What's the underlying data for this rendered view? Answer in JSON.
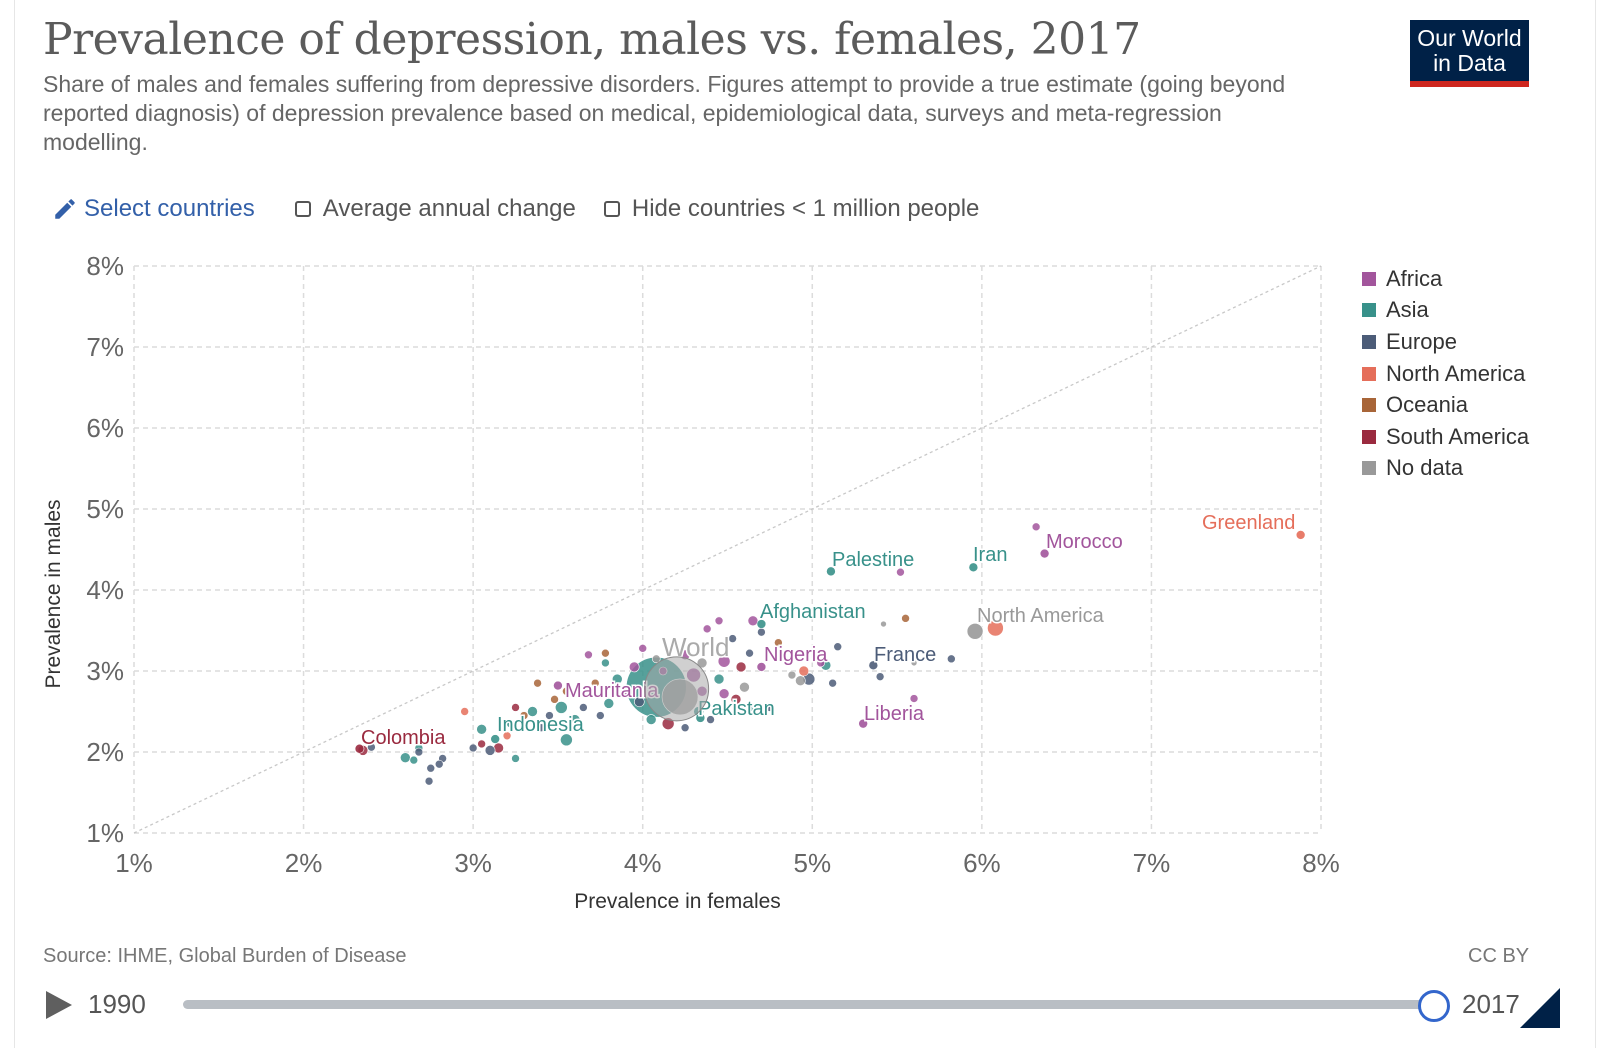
{
  "title": "Prevalence of depression, males vs. females, 2017",
  "subtitle": "Share of males and females suffering from depressive disorders. Figures attempt to provide a true estimate (going beyond reported diagnosis) of depression prevalence based on medical, epidemiological data, surveys and meta-regression modelling.",
  "logo": {
    "line1": "Our World",
    "line2": "in Data"
  },
  "controls": {
    "select_countries": "Select countries",
    "average_annual_change": "Average annual change",
    "hide_small": "Hide countries < 1 million people"
  },
  "source": "Source: IHME, Global Burden of Disease",
  "license": "CC BY",
  "timeline": {
    "start_year": "1990",
    "end_year": "2017",
    "position": 1.0
  },
  "colors": {
    "Africa": "#a2559c",
    "Asia": "#38918a",
    "Europe": "#4c5c78",
    "North America": "#e56e5a",
    "Oceania": "#a86538",
    "South America": "#9a2a3f",
    "No data": "#999999",
    "accent": "#3360a9"
  },
  "legend": [
    "Africa",
    "Asia",
    "Europe",
    "North America",
    "Oceania",
    "South America",
    "No data"
  ],
  "chart_data": {
    "type": "scatter",
    "title": "Prevalence of depression, males vs. females, 2017",
    "xlabel": "Prevalence in females",
    "ylabel": "Prevalence in males",
    "xlim": [
      1,
      8
    ],
    "ylim": [
      1,
      8
    ],
    "x_ticks": [
      "1%",
      "2%",
      "3%",
      "4%",
      "5%",
      "6%",
      "7%",
      "8%"
    ],
    "y_ticks": [
      "1%",
      "2%",
      "3%",
      "4%",
      "5%",
      "6%",
      "7%",
      "8%"
    ],
    "reference_line": "y = x",
    "labeled_points": [
      {
        "name": "Greenland",
        "x": 7.88,
        "y": 4.68,
        "region": "North America"
      },
      {
        "name": "Morocco",
        "x": 6.37,
        "y": 4.45,
        "region": "Africa"
      },
      {
        "name": "Iran",
        "x": 5.95,
        "y": 4.28,
        "region": "Asia"
      },
      {
        "name": "Palestine",
        "x": 5.11,
        "y": 4.23,
        "region": "Asia"
      },
      {
        "name": "North America",
        "x": 5.96,
        "y": 3.49,
        "region": "No data"
      },
      {
        "name": "Afghanistan",
        "x": 4.7,
        "y": 3.58,
        "region": "Asia"
      },
      {
        "name": "France",
        "x": 5.36,
        "y": 3.07,
        "region": "Europe"
      },
      {
        "name": "Nigeria",
        "x": 4.7,
        "y": 3.05,
        "region": "Africa"
      },
      {
        "name": "World",
        "x": 4.2,
        "y": 2.78,
        "region": "No data"
      },
      {
        "name": "Mauritania",
        "x": 3.5,
        "y": 2.82,
        "region": "Africa"
      },
      {
        "name": "Pakistan",
        "x": 4.34,
        "y": 2.42,
        "region": "Asia"
      },
      {
        "name": "Liberia",
        "x": 5.3,
        "y": 2.35,
        "region": "Africa"
      },
      {
        "name": "Indonesia",
        "x": 3.13,
        "y": 2.16,
        "region": "Asia"
      },
      {
        "name": "Colombia",
        "x": 2.33,
        "y": 2.04,
        "region": "South America"
      }
    ],
    "points": [
      {
        "x": 6.08,
        "y": 3.53,
        "region": "North America",
        "size": 8
      },
      {
        "x": 4.08,
        "y": 2.8,
        "region": "Asia",
        "size": 30
      },
      {
        "x": 4.22,
        "y": 2.68,
        "region": "No data",
        "size": 18
      },
      {
        "x": 6.32,
        "y": 4.78,
        "region": "Africa",
        "size": 4
      },
      {
        "x": 5.52,
        "y": 4.22,
        "region": "Africa",
        "size": 4
      },
      {
        "x": 5.55,
        "y": 3.65,
        "region": "Oceania",
        "size": 4
      },
      {
        "x": 5.42,
        "y": 3.58,
        "region": "No data",
        "size": 3
      },
      {
        "x": 5.82,
        "y": 3.15,
        "region": "Europe",
        "size": 4
      },
      {
        "x": 5.6,
        "y": 3.1,
        "region": "No data",
        "size": 3
      },
      {
        "x": 5.4,
        "y": 2.93,
        "region": "Europe",
        "size": 4
      },
      {
        "x": 5.6,
        "y": 2.66,
        "region": "Africa",
        "size": 4
      },
      {
        "x": 5.15,
        "y": 3.3,
        "region": "Europe",
        "size": 4
      },
      {
        "x": 5.08,
        "y": 3.07,
        "region": "Asia",
        "size": 5
      },
      {
        "x": 4.98,
        "y": 2.9,
        "region": "Europe",
        "size": 6
      },
      {
        "x": 4.93,
        "y": 2.88,
        "region": "No data",
        "size": 5
      },
      {
        "x": 5.12,
        "y": 2.85,
        "region": "Europe",
        "size": 4
      },
      {
        "x": 4.88,
        "y": 2.95,
        "region": "No data",
        "size": 4
      },
      {
        "x": 4.95,
        "y": 3.0,
        "region": "North America",
        "size": 5
      },
      {
        "x": 5.05,
        "y": 3.1,
        "region": "Africa",
        "size": 4
      },
      {
        "x": 4.8,
        "y": 3.35,
        "region": "Oceania",
        "size": 4
      },
      {
        "x": 4.65,
        "y": 3.62,
        "region": "Africa",
        "size": 5
      },
      {
        "x": 4.63,
        "y": 3.22,
        "region": "Europe",
        "size": 4
      },
      {
        "x": 4.7,
        "y": 3.48,
        "region": "Europe",
        "size": 4
      },
      {
        "x": 4.58,
        "y": 3.05,
        "region": "South America",
        "size": 5
      },
      {
        "x": 4.53,
        "y": 3.4,
        "region": "Europe",
        "size": 4
      },
      {
        "x": 4.6,
        "y": 2.8,
        "region": "No data",
        "size": 5
      },
      {
        "x": 4.55,
        "y": 2.65,
        "region": "South America",
        "size": 5
      },
      {
        "x": 4.45,
        "y": 2.9,
        "region": "Asia",
        "size": 5
      },
      {
        "x": 4.65,
        "y": 2.55,
        "region": "Asia",
        "size": 4
      },
      {
        "x": 4.75,
        "y": 2.55,
        "region": "Europe",
        "size": 4
      },
      {
        "x": 4.48,
        "y": 3.12,
        "region": "Africa",
        "size": 6
      },
      {
        "x": 4.38,
        "y": 3.52,
        "region": "Africa",
        "size": 4
      },
      {
        "x": 4.45,
        "y": 3.62,
        "region": "Africa",
        "size": 4
      },
      {
        "x": 4.35,
        "y": 3.1,
        "region": "No data",
        "size": 5
      },
      {
        "x": 4.3,
        "y": 2.95,
        "region": "Africa",
        "size": 7
      },
      {
        "x": 4.25,
        "y": 3.2,
        "region": "Africa",
        "size": 5
      },
      {
        "x": 4.35,
        "y": 2.75,
        "region": "Africa",
        "size": 5
      },
      {
        "x": 4.48,
        "y": 2.72,
        "region": "Africa",
        "size": 5
      },
      {
        "x": 4.4,
        "y": 2.4,
        "region": "Europe",
        "size": 4
      },
      {
        "x": 4.25,
        "y": 2.3,
        "region": "Europe",
        "size": 4
      },
      {
        "x": 4.33,
        "y": 2.5,
        "region": "Asia",
        "size": 5
      },
      {
        "x": 4.15,
        "y": 2.35,
        "region": "South America",
        "size": 6
      },
      {
        "x": 4.05,
        "y": 2.4,
        "region": "Asia",
        "size": 5
      },
      {
        "x": 3.98,
        "y": 2.62,
        "region": "Europe",
        "size": 5
      },
      {
        "x": 3.9,
        "y": 2.75,
        "region": "Africa",
        "size": 5
      },
      {
        "x": 3.95,
        "y": 3.05,
        "region": "Africa",
        "size": 5
      },
      {
        "x": 4.0,
        "y": 3.28,
        "region": "Africa",
        "size": 4
      },
      {
        "x": 4.08,
        "y": 3.15,
        "region": "No data",
        "size": 4
      },
      {
        "x": 4.12,
        "y": 3.0,
        "region": "Africa",
        "size": 4
      },
      {
        "x": 3.85,
        "y": 2.9,
        "region": "Asia",
        "size": 5
      },
      {
        "x": 3.8,
        "y": 2.6,
        "region": "Asia",
        "size": 5
      },
      {
        "x": 3.75,
        "y": 2.45,
        "region": "Europe",
        "size": 4
      },
      {
        "x": 3.72,
        "y": 2.85,
        "region": "Oceania",
        "size": 4
      },
      {
        "x": 3.68,
        "y": 3.2,
        "region": "Africa",
        "size": 4
      },
      {
        "x": 3.78,
        "y": 3.1,
        "region": "Asia",
        "size": 4
      },
      {
        "x": 3.78,
        "y": 3.22,
        "region": "Oceania",
        "size": 4
      },
      {
        "x": 3.65,
        "y": 2.55,
        "region": "Europe",
        "size": 4
      },
      {
        "x": 3.6,
        "y": 2.4,
        "region": "Asia",
        "size": 5
      },
      {
        "x": 3.55,
        "y": 2.75,
        "region": "Oceania",
        "size": 4
      },
      {
        "x": 3.52,
        "y": 2.55,
        "region": "Asia",
        "size": 6
      },
      {
        "x": 3.48,
        "y": 2.65,
        "region": "Oceania",
        "size": 4
      },
      {
        "x": 3.55,
        "y": 2.15,
        "region": "Asia",
        "size": 6
      },
      {
        "x": 3.45,
        "y": 2.45,
        "region": "Europe",
        "size": 4
      },
      {
        "x": 3.4,
        "y": 2.3,
        "region": "Europe",
        "size": 4
      },
      {
        "x": 3.38,
        "y": 2.85,
        "region": "Oceania",
        "size": 4
      },
      {
        "x": 3.35,
        "y": 2.5,
        "region": "Asia",
        "size": 5
      },
      {
        "x": 3.3,
        "y": 2.45,
        "region": "Oceania",
        "size": 4
      },
      {
        "x": 3.25,
        "y": 2.55,
        "region": "South America",
        "size": 4
      },
      {
        "x": 3.22,
        "y": 2.35,
        "region": "Asia",
        "size": 4
      },
      {
        "x": 3.25,
        "y": 1.92,
        "region": "Asia",
        "size": 4
      },
      {
        "x": 3.2,
        "y": 2.2,
        "region": "North America",
        "size": 4
      },
      {
        "x": 3.15,
        "y": 2.05,
        "region": "South America",
        "size": 5
      },
      {
        "x": 3.1,
        "y": 2.02,
        "region": "Europe",
        "size": 5
      },
      {
        "x": 3.05,
        "y": 2.1,
        "region": "South America",
        "size": 4
      },
      {
        "x": 3.05,
        "y": 2.28,
        "region": "Asia",
        "size": 5
      },
      {
        "x": 3.0,
        "y": 2.05,
        "region": "Europe",
        "size": 4
      },
      {
        "x": 2.95,
        "y": 2.5,
        "region": "North America",
        "size": 4
      },
      {
        "x": 2.82,
        "y": 1.92,
        "region": "Europe",
        "size": 4
      },
      {
        "x": 2.8,
        "y": 1.85,
        "region": "Europe",
        "size": 4
      },
      {
        "x": 2.75,
        "y": 1.8,
        "region": "Europe",
        "size": 4
      },
      {
        "x": 2.74,
        "y": 1.64,
        "region": "Europe",
        "size": 4
      },
      {
        "x": 2.68,
        "y": 2.05,
        "region": "Asia",
        "size": 4
      },
      {
        "x": 2.65,
        "y": 1.9,
        "region": "Asia",
        "size": 4
      },
      {
        "x": 2.6,
        "y": 1.93,
        "region": "Asia",
        "size": 5
      },
      {
        "x": 2.68,
        "y": 2.0,
        "region": "Europe",
        "size": 4
      },
      {
        "x": 2.4,
        "y": 2.06,
        "region": "Europe",
        "size": 4
      },
      {
        "x": 2.35,
        "y": 2.02,
        "region": "South America",
        "size": 5
      }
    ]
  }
}
